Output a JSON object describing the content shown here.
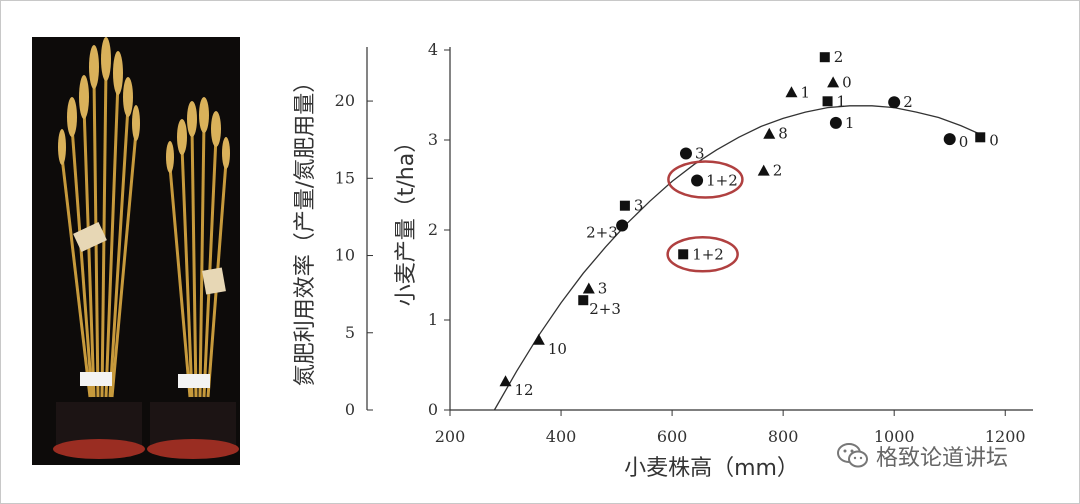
{
  "chart_data": {
    "type": "scatter",
    "xlabel": "小麦株高（mm）",
    "ylabel_left": "氮肥利用效率（产量/氮肥用量）",
    "ylabel_right": "小麦产量（t/ha）",
    "x_ticks": [
      "200",
      "400",
      "600",
      "800",
      "1000",
      "1200"
    ],
    "y_right_ticks": [
      "0",
      "1",
      "2",
      "3",
      "4"
    ],
    "y_left_ticks": [
      "0",
      "5",
      "10",
      "15",
      "20"
    ],
    "xlim": [
      200,
      1250
    ],
    "ylim_right": [
      0,
      4
    ],
    "ylim_left": [
      0,
      23.5
    ],
    "series": [
      {
        "marker": "triangle",
        "points": [
          {
            "x": 300,
            "y": 0.32,
            "label": "12"
          },
          {
            "x": 360,
            "y": 0.78,
            "label": "10"
          },
          {
            "x": 450,
            "y": 1.35,
            "label": "3"
          },
          {
            "x": 765,
            "y": 2.66,
            "label": "2"
          },
          {
            "x": 775,
            "y": 3.07,
            "label": "8"
          },
          {
            "x": 815,
            "y": 3.53,
            "label": "1"
          },
          {
            "x": 890,
            "y": 3.64,
            "label": "0"
          }
        ]
      },
      {
        "marker": "square",
        "points": [
          {
            "x": 440,
            "y": 1.22,
            "label": "2+3"
          },
          {
            "x": 515,
            "y": 2.27,
            "label": "3"
          },
          {
            "x": 620,
            "y": 1.73,
            "label": "1+2"
          },
          {
            "x": 880,
            "y": 3.43,
            "label": "1"
          },
          {
            "x": 875,
            "y": 3.92,
            "label": "2"
          },
          {
            "x": 1155,
            "y": 3.03,
            "label": "0"
          }
        ]
      },
      {
        "marker": "circle",
        "points": [
          {
            "x": 510,
            "y": 2.05,
            "label": "2+3"
          },
          {
            "x": 625,
            "y": 2.85,
            "label": "3"
          },
          {
            "x": 645,
            "y": 2.55,
            "label": "1+2"
          },
          {
            "x": 895,
            "y": 3.19,
            "label": "1"
          },
          {
            "x": 1000,
            "y": 3.42,
            "label": "2"
          },
          {
            "x": 1100,
            "y": 3.01,
            "label": "0"
          }
        ]
      }
    ],
    "trend_curve": {
      "x": [
        280,
        320,
        360,
        400,
        440,
        480,
        520,
        560,
        600,
        640,
        680,
        720,
        760,
        800,
        840,
        880,
        920,
        960,
        1000,
        1040,
        1080,
        1120,
        1160
      ],
      "y": [
        0,
        0.43,
        0.83,
        1.19,
        1.52,
        1.81,
        2.08,
        2.32,
        2.54,
        2.73,
        2.89,
        3.03,
        3.15,
        3.24,
        3.31,
        3.36,
        3.38,
        3.38,
        3.36,
        3.31,
        3.25,
        3.16,
        3.05
      ]
    },
    "highlighted_labels": [
      "1+2",
      "1+2"
    ]
  },
  "colors": {
    "marker": "#111111",
    "highlight": "#b04040",
    "axis": "#333333"
  },
  "icons": {
    "watermark": "wechat-icon"
  },
  "watermark_text": "格致论道讲坛"
}
